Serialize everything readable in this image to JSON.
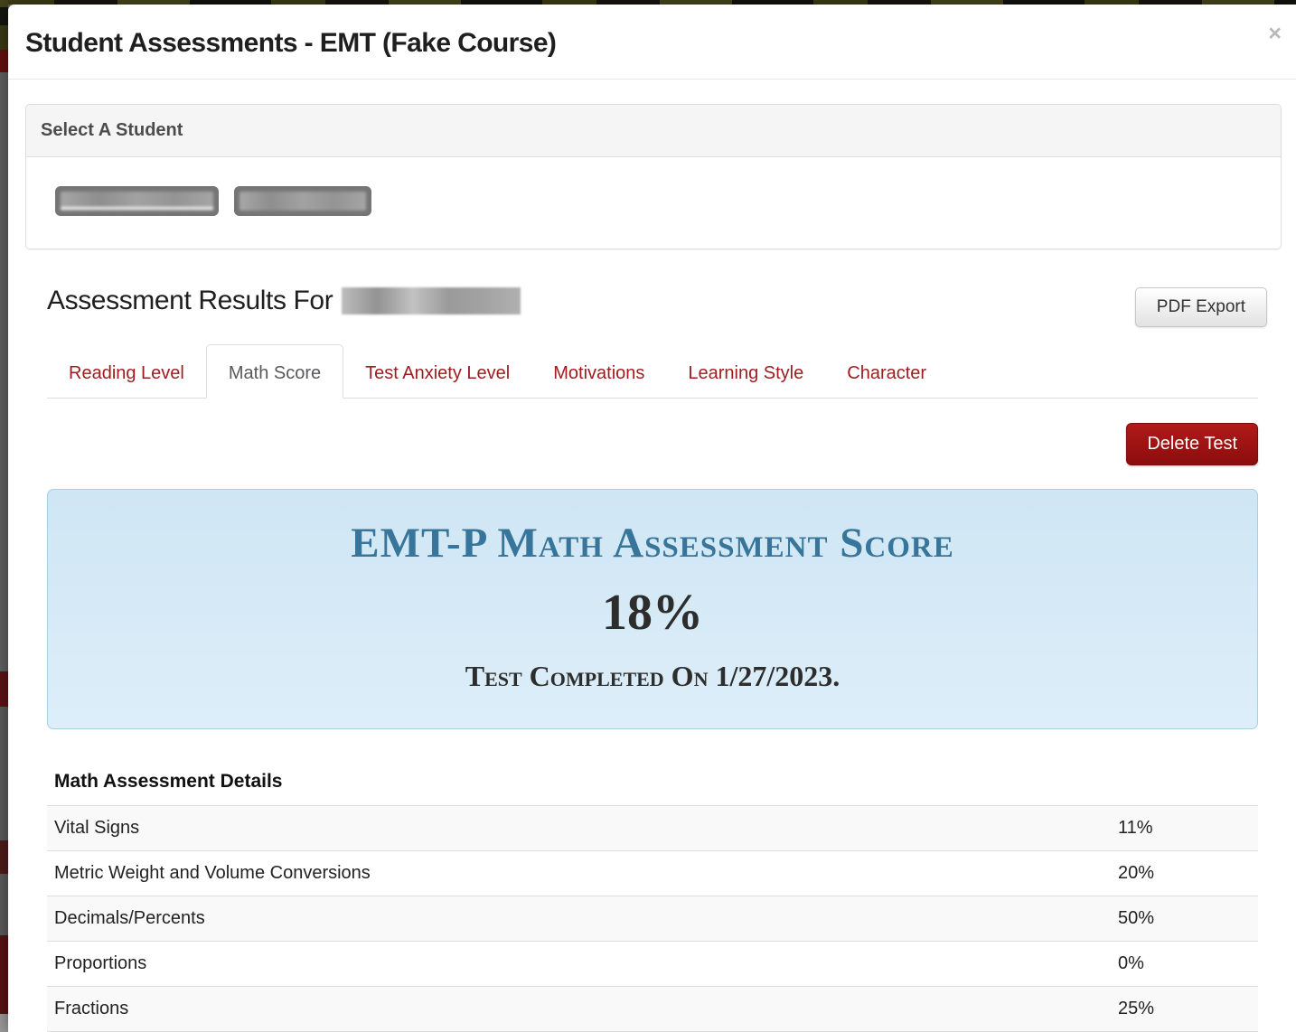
{
  "modal": {
    "title": "Student Assessments - EMT (Fake Course)",
    "close": "×"
  },
  "student_selector": {
    "heading": "Select A Student",
    "students": [
      {
        "redacted": true
      },
      {
        "redacted": true
      }
    ]
  },
  "results": {
    "heading": "Assessment Results For",
    "student_name_redacted": true,
    "pdf_export_label": "PDF Export"
  },
  "tabs": [
    {
      "label": "Reading Level",
      "active": false
    },
    {
      "label": "Math Score",
      "active": true
    },
    {
      "label": "Test Anxiety Level",
      "active": false
    },
    {
      "label": "Motivations",
      "active": false
    },
    {
      "label": "Learning Style",
      "active": false
    },
    {
      "label": "Character",
      "active": false
    }
  ],
  "math_score_tab": {
    "delete_button_label": "Delete Test",
    "score_panel": {
      "title": "EMT-P Math Assessment Score",
      "score": "18%",
      "completed": "Test Completed On 1/27/2023."
    },
    "details": {
      "heading": "Math Assessment Details",
      "rows": [
        {
          "label": "Vital Signs",
          "value": "11%"
        },
        {
          "label": "Metric Weight and Volume Conversions",
          "value": "20%"
        },
        {
          "label": "Decimals/Percents",
          "value": "50%"
        },
        {
          "label": "Proportions",
          "value": "0%"
        },
        {
          "label": "Fractions",
          "value": "25%"
        }
      ]
    }
  },
  "colors": {
    "tab_accent_red": "#9e1b1e",
    "delete_button_red": "#8c0d0d",
    "score_panel_bg": "#d5eaf6",
    "score_panel_border": "#a9cfe5",
    "score_title_blue": "#38759b"
  }
}
